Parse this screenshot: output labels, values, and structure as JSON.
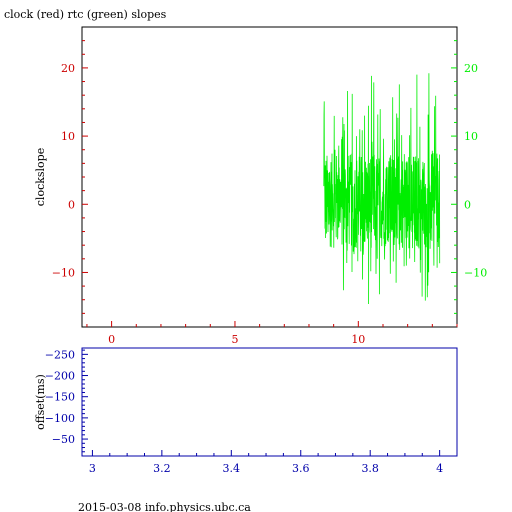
{
  "footer": "2015-03-08 info.physics.ubc.ca",
  "colors": {
    "red": "#cc0000",
    "green": "#00ee00",
    "blue": "#0000aa",
    "black": "#000000"
  },
  "chart_data": [
    {
      "type": "line",
      "title": "clock (red) rtc (green) slopes",
      "ylabel": "clockslope",
      "xlim": [
        -1.2,
        14
      ],
      "ylim": [
        -18,
        26
      ],
      "x_ticks": [
        0,
        5,
        10
      ],
      "x_minor_step": 1,
      "y_ticks_left": [
        -10,
        0,
        10,
        20
      ],
      "y_ticks_right": [
        -10,
        0,
        10,
        20
      ],
      "y_minor_step": 2,
      "grid": false,
      "series": [
        {
          "color": "#00ee00",
          "x_start": 8.6,
          "x_end": 13.3,
          "y_center": 0.5,
          "core_amplitude": 7,
          "spike_min": -16.5,
          "spike_max": 23.5
        }
      ]
    },
    {
      "type": "line",
      "title": "",
      "ylabel": "offset(ms)",
      "xlim": [
        2.97,
        4.05
      ],
      "ylim": [
        -10,
        -265
      ],
      "x_ticks": [
        3,
        3.2,
        3.4,
        3.6,
        3.8,
        4
      ],
      "x_tick_labels": [
        "3",
        "3.2",
        "3.4",
        "3.6",
        "3.8",
        "4"
      ],
      "x_minor_step": 0.05,
      "y_ticks": [
        -50,
        -100,
        -150,
        -200,
        -250
      ],
      "y_tick_labels": [
        "−50",
        "−100",
        "−150",
        "−200",
        "−250"
      ],
      "y_minor_step": 10,
      "grid": false,
      "series": []
    }
  ]
}
